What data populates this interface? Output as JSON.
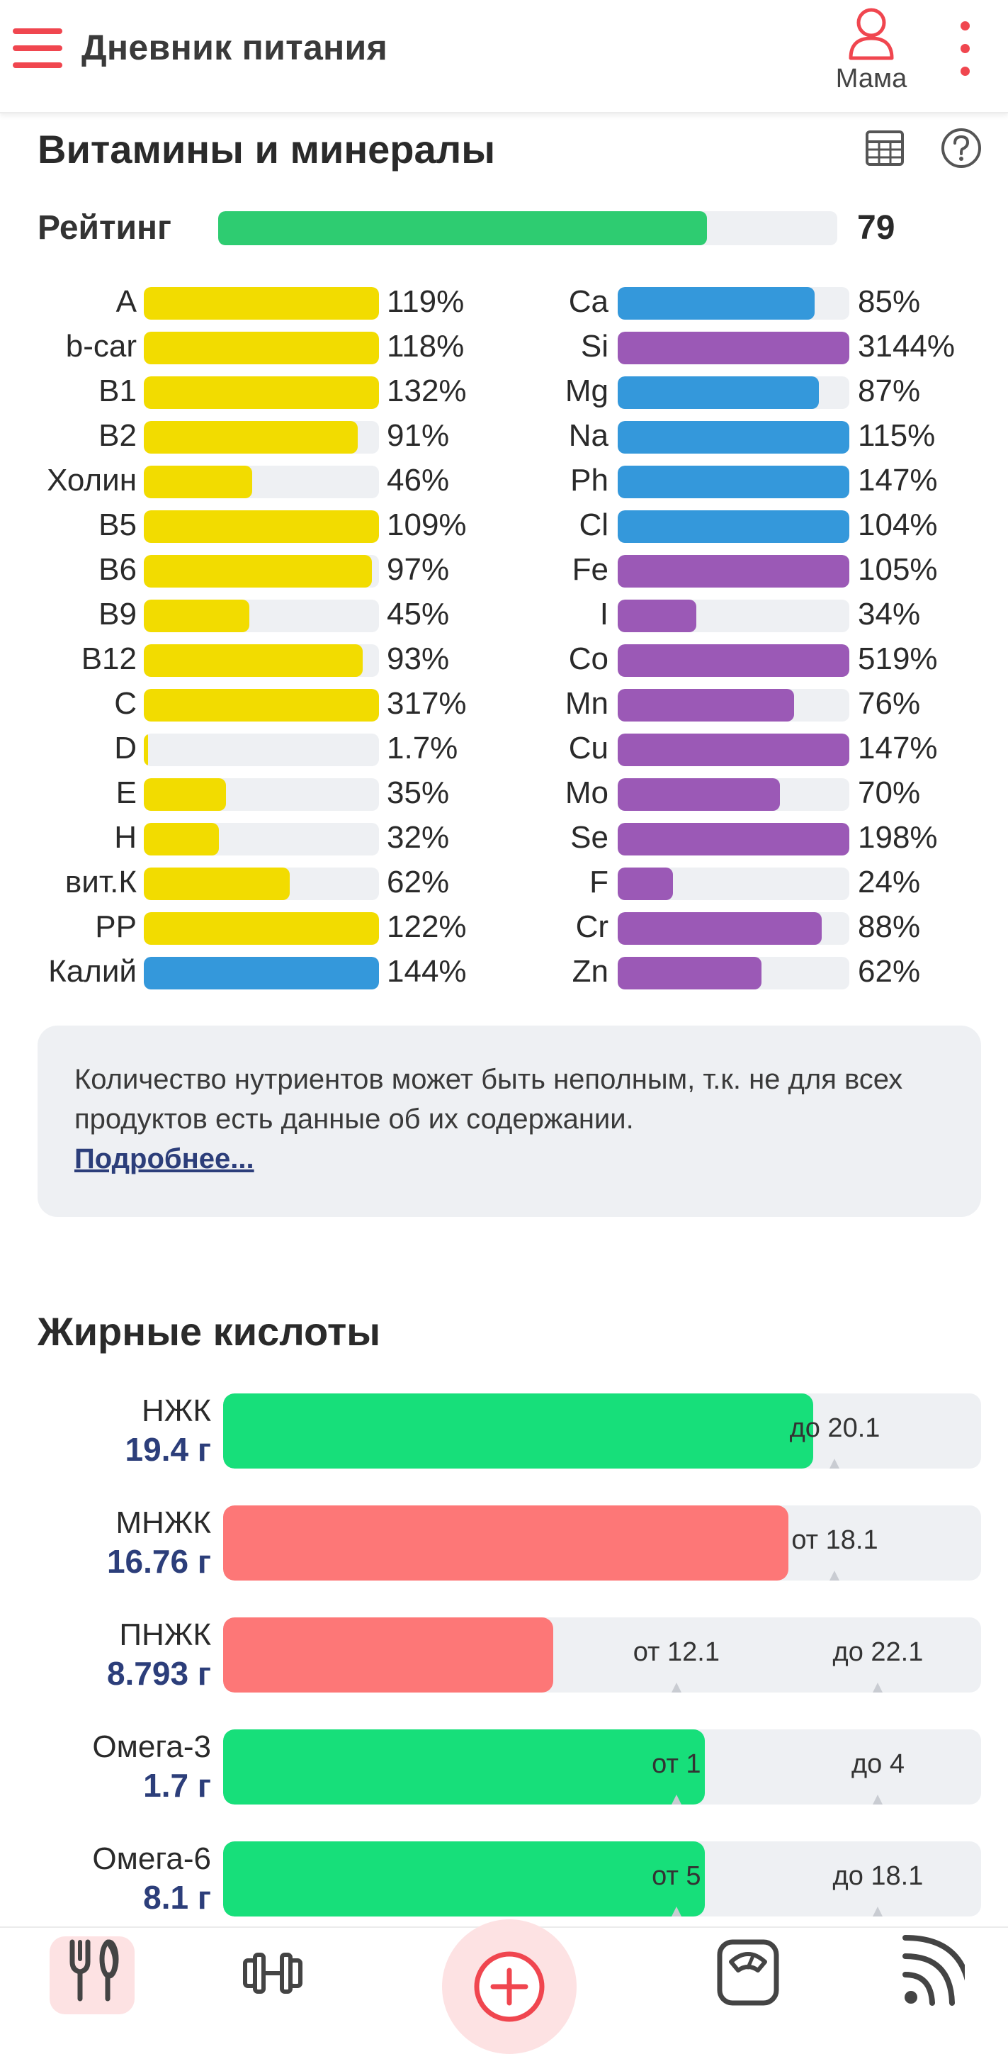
{
  "header": {
    "title": "Дневник питания",
    "profile_name": "Мама"
  },
  "vitamins": {
    "title": "Витамины и минералы",
    "rating_label": "Рейтинг",
    "rating_value": "79",
    "rating_fraction": 0.79,
    "rating_color": "#2ecc71",
    "left": [
      {
        "name": "A",
        "pct": "119%",
        "fill": 1.0,
        "color": "#f2dc00"
      },
      {
        "name": "b-car",
        "pct": "118%",
        "fill": 1.0,
        "color": "#f2dc00"
      },
      {
        "name": "B1",
        "pct": "132%",
        "fill": 1.0,
        "color": "#f2dc00"
      },
      {
        "name": "B2",
        "pct": "91%",
        "fill": 0.91,
        "color": "#f2dc00"
      },
      {
        "name": "Холин",
        "pct": "46%",
        "fill": 0.46,
        "color": "#f2dc00"
      },
      {
        "name": "B5",
        "pct": "109%",
        "fill": 1.0,
        "color": "#f2dc00"
      },
      {
        "name": "B6",
        "pct": "97%",
        "fill": 0.97,
        "color": "#f2dc00"
      },
      {
        "name": "B9",
        "pct": "45%",
        "fill": 0.45,
        "color": "#f2dc00"
      },
      {
        "name": "B12",
        "pct": "93%",
        "fill": 0.93,
        "color": "#f2dc00"
      },
      {
        "name": "C",
        "pct": "317%",
        "fill": 1.0,
        "color": "#f2dc00"
      },
      {
        "name": "D",
        "pct": "1.7%",
        "fill": 0.017,
        "color": "#f2dc00"
      },
      {
        "name": "E",
        "pct": "35%",
        "fill": 0.35,
        "color": "#f2dc00"
      },
      {
        "name": "H",
        "pct": "32%",
        "fill": 0.32,
        "color": "#f2dc00"
      },
      {
        "name": "вит.К",
        "pct": "62%",
        "fill": 0.62,
        "color": "#f2dc00"
      },
      {
        "name": "PP",
        "pct": "122%",
        "fill": 1.0,
        "color": "#f2dc00"
      },
      {
        "name": "Калий",
        "pct": "144%",
        "fill": 1.0,
        "color": "#3498db"
      }
    ],
    "right": [
      {
        "name": "Ca",
        "pct": "85%",
        "fill": 0.85,
        "color": "#3498db"
      },
      {
        "name": "Si",
        "pct": "3144%",
        "fill": 1.0,
        "color": "#9b59b6"
      },
      {
        "name": "Mg",
        "pct": "87%",
        "fill": 0.87,
        "color": "#3498db"
      },
      {
        "name": "Na",
        "pct": "115%",
        "fill": 1.0,
        "color": "#3498db"
      },
      {
        "name": "Ph",
        "pct": "147%",
        "fill": 1.0,
        "color": "#3498db"
      },
      {
        "name": "Cl",
        "pct": "104%",
        "fill": 1.0,
        "color": "#3498db"
      },
      {
        "name": "Fe",
        "pct": "105%",
        "fill": 1.0,
        "color": "#9b59b6"
      },
      {
        "name": "I",
        "pct": "34%",
        "fill": 0.34,
        "color": "#9b59b6"
      },
      {
        "name": "Co",
        "pct": "519%",
        "fill": 1.0,
        "color": "#9b59b6"
      },
      {
        "name": "Mn",
        "pct": "76%",
        "fill": 0.76,
        "color": "#9b59b6"
      },
      {
        "name": "Cu",
        "pct": "147%",
        "fill": 1.0,
        "color": "#9b59b6"
      },
      {
        "name": "Mo",
        "pct": "70%",
        "fill": 0.7,
        "color": "#9b59b6"
      },
      {
        "name": "Se",
        "pct": "198%",
        "fill": 1.0,
        "color": "#9b59b6"
      },
      {
        "name": "F",
        "pct": "24%",
        "fill": 0.24,
        "color": "#9b59b6"
      },
      {
        "name": "Cr",
        "pct": "88%",
        "fill": 0.88,
        "color": "#9b59b6"
      },
      {
        "name": "Zn",
        "pct": "62%",
        "fill": 0.62,
        "color": "#9b59b6"
      }
    ]
  },
  "note": {
    "text": "Количество нутриентов может быть неполным, т.к. не для всех продуктов есть данные об их содержании.",
    "link": "Подробнее..."
  },
  "fatty": {
    "title": "Жирные кислоты",
    "rows": [
      {
        "name": "НЖК",
        "value": "19.4 г",
        "fill": 0.7785,
        "color": "#17df7a",
        "marks": [
          {
            "label": "до 20.1",
            "pos": 0.807
          }
        ]
      },
      {
        "name": "МНЖК",
        "value": "16.76 г",
        "fill": 0.746,
        "color": "#fd7777",
        "marks": [
          {
            "label": "от 18.1",
            "pos": 0.807
          }
        ]
      },
      {
        "name": "ПНЖК",
        "value": "8.793 г",
        "fill": 0.4355,
        "color": "#fd7777",
        "marks": [
          {
            "label": "от 12.1",
            "pos": 0.598
          },
          {
            "label": "до 22.1",
            "pos": 0.864
          }
        ]
      },
      {
        "name": "Омега-3",
        "value": "1.7 г",
        "fill": 0.6355,
        "color": "#17df7a",
        "marks": [
          {
            "label": "от 1",
            "pos": 0.598
          },
          {
            "label": "до 4",
            "pos": 0.864
          }
        ]
      },
      {
        "name": "Омега-6",
        "value": "8.1 г",
        "fill": 0.6355,
        "color": "#17df7a",
        "marks": [
          {
            "label": "от 5",
            "pos": 0.598
          },
          {
            "label": "до 18.1",
            "pos": 0.864
          }
        ]
      }
    ]
  },
  "bottom_nav": {
    "items": [
      "fork-knife-icon",
      "dumbbell-icon",
      "add-icon",
      "scale-icon",
      "feed-icon"
    ],
    "accent": "#f0464f"
  }
}
